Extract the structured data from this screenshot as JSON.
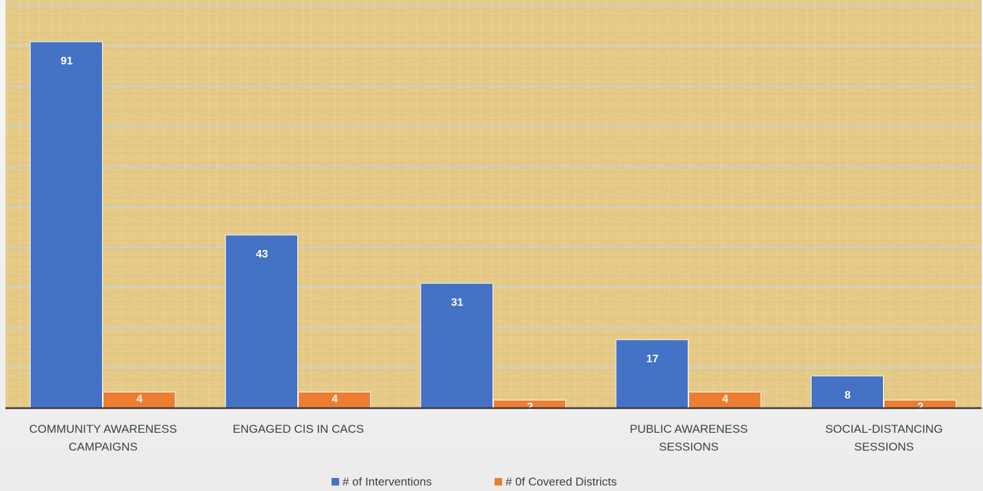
{
  "chart_data": {
    "type": "bar",
    "categories": [
      [
        "COMMUNITY AWARENESS",
        "CAMPAIGNS"
      ],
      [
        "ENGAGED CIS IN CACS"
      ],
      [],
      [
        "PUBLIC AWARENESS",
        "SESSIONS"
      ],
      [
        "SOCIAL-DISTANCING",
        "SESSIONS"
      ]
    ],
    "series": [
      {
        "name": "# of Interventions",
        "color": "#4472c4",
        "values": [
          91,
          43,
          31,
          17,
          8
        ]
      },
      {
        "name": "# 0f Covered Districts",
        "color": "#ed7d31",
        "values": [
          4,
          4,
          2,
          4,
          2
        ]
      }
    ],
    "ylim": [
      0,
      100
    ],
    "grid": true,
    "legend": "bottom",
    "plot_background": "#e8cc8a",
    "gridline_color": "#b9d4ea"
  }
}
